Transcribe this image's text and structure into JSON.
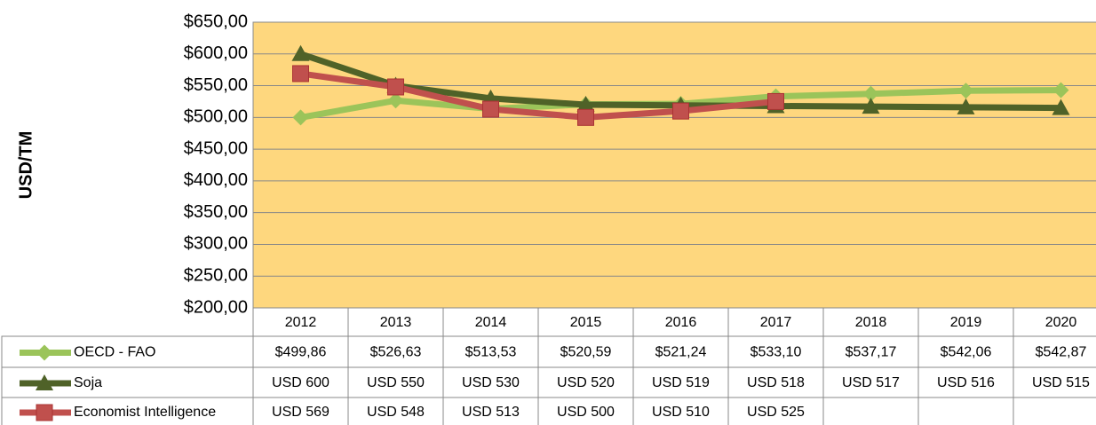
{
  "chart_data": {
    "type": "line",
    "y_label": "USD/TM",
    "categories": [
      "2012",
      "2013",
      "2014",
      "2015",
      "2016",
      "2017",
      "2018",
      "2019",
      "2020"
    ],
    "series": [
      {
        "name": "OECD - FAO",
        "color": "#9bc45a",
        "marker": "diamond",
        "values": [
          499.86,
          526.63,
          513.53,
          520.59,
          521.24,
          533.1,
          537.17,
          542.06,
          542.87
        ],
        "value_labels": [
          "$499,86",
          "$526,63",
          "$513,53",
          "$520,59",
          "$521,24",
          "$533,10",
          "$537,17",
          "$542,06",
          "$542,87"
        ]
      },
      {
        "name": "Soja",
        "color": "#4f6228",
        "marker": "triangle",
        "values": [
          600,
          550,
          530,
          520,
          519,
          518,
          517,
          516,
          515
        ],
        "value_labels": [
          "USD 600",
          "USD 550",
          "USD 530",
          "USD 520",
          "USD 519",
          "USD 518",
          "USD 517",
          "USD 516",
          "USD 515"
        ]
      },
      {
        "name": "Economist Intelligence",
        "color": "#c0504d",
        "marker": "square",
        "values": [
          569,
          548,
          513,
          500,
          510,
          525,
          null,
          null,
          null
        ],
        "value_labels": [
          "USD 569",
          "USD 548",
          "USD 513",
          "USD 500",
          "USD 510",
          "USD 525",
          null,
          null,
          null
        ]
      }
    ],
    "ylim": [
      200,
      650
    ],
    "yticks": [
      {
        "value": 200,
        "label": "$200,00"
      },
      {
        "value": 250,
        "label": "$250,00"
      },
      {
        "value": 300,
        "label": "$300,00"
      },
      {
        "value": 350,
        "label": "$350,00"
      },
      {
        "value": 400,
        "label": "$400,00"
      },
      {
        "value": 450,
        "label": "$450,00"
      },
      {
        "value": 500,
        "label": "$500,00"
      },
      {
        "value": 550,
        "label": "$550,00"
      },
      {
        "value": 600,
        "label": "$600,00"
      },
      {
        "value": 650,
        "label": "$650,00"
      }
    ],
    "grid": true,
    "plot_background": "#fed77e"
  }
}
